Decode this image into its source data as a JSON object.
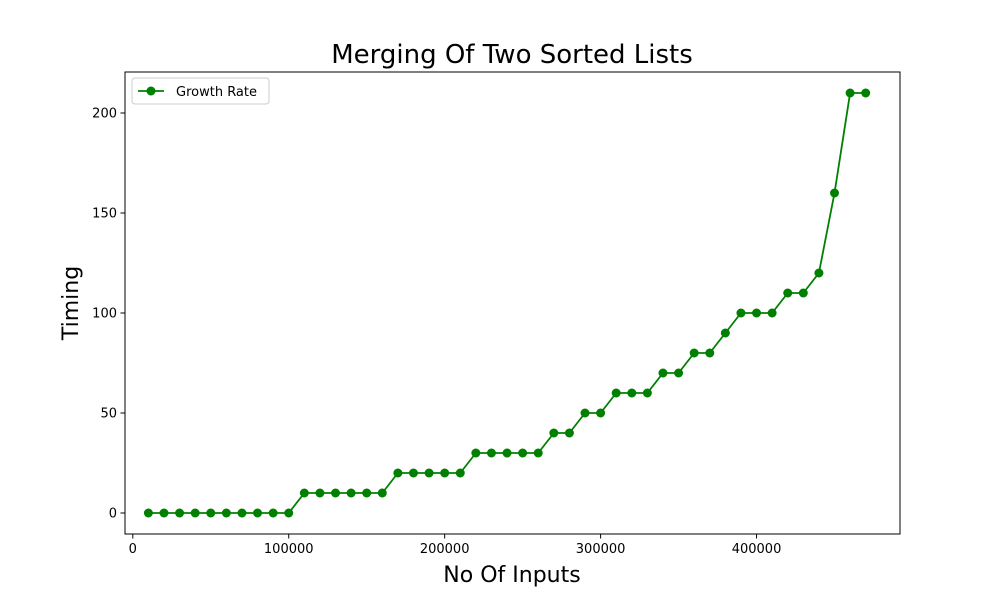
{
  "colors": {
    "series": "#008000",
    "axes": "#000000",
    "background": "#ffffff",
    "legend_border": "#cccccc"
  },
  "chart_data": {
    "type": "line",
    "title": "Merging Of Two Sorted Lists",
    "xlabel": "No Of Inputs",
    "ylabel": "Timing",
    "xlim": [
      -5000,
      492000
    ],
    "ylim": [
      -10.5,
      220.5
    ],
    "xticks": [
      0,
      100000,
      200000,
      300000,
      400000
    ],
    "yticks": [
      0,
      50,
      100,
      150,
      200
    ],
    "xtick_labels": [
      "0",
      "100000",
      "200000",
      "300000",
      "400000"
    ],
    "ytick_labels": [
      "0",
      "50",
      "100",
      "150",
      "200"
    ],
    "grid": false,
    "legend_position": "top-left",
    "marker": "circle",
    "series": [
      {
        "name": "Growth Rate",
        "color": "#008000",
        "x": [
          10000,
          20000,
          30000,
          40000,
          50000,
          60000,
          70000,
          80000,
          90000,
          100000,
          110000,
          120000,
          130000,
          140000,
          150000,
          160000,
          170000,
          180000,
          190000,
          200000,
          210000,
          220000,
          230000,
          240000,
          250000,
          260000,
          270000,
          280000,
          290000,
          300000,
          310000,
          320000,
          330000,
          340000,
          350000,
          360000,
          370000,
          380000,
          390000,
          400000,
          410000,
          420000,
          430000,
          440000,
          450000,
          460000,
          470000
        ],
        "y": [
          0,
          0,
          0,
          0,
          0,
          0,
          0,
          0,
          0,
          0,
          10,
          10,
          10,
          10,
          10,
          10,
          20,
          20,
          20,
          20,
          20,
          30,
          30,
          30,
          30,
          30,
          40,
          40,
          50,
          50,
          60,
          60,
          60,
          70,
          70,
          80,
          80,
          90,
          100,
          100,
          100,
          110,
          110,
          120,
          160,
          210,
          210
        ]
      }
    ]
  }
}
